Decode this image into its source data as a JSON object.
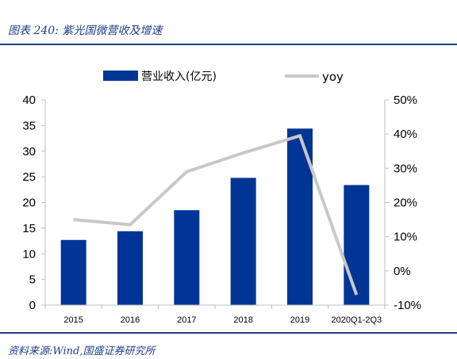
{
  "figure": {
    "title": "图表 240:  紫光国微营收及增速",
    "source": "资料来源:Wind,国盛证券研究所"
  },
  "colors": {
    "bar": "#003595",
    "line": "#c8c8c8",
    "rule": "#1f3d8a"
  },
  "chart_data": {
    "type": "bar",
    "categories": [
      "2015",
      "2016",
      "2017",
      "2018",
      "2019",
      "2020Q1-2Q3"
    ],
    "series": [
      {
        "name": "营业收入(亿元)",
        "type": "bar",
        "axis": "left",
        "values": [
          12.7,
          14.4,
          18.5,
          24.8,
          34.4,
          23.4
        ]
      },
      {
        "name": "yoy",
        "type": "line",
        "axis": "right",
        "values": [
          15.0,
          13.5,
          29.0,
          34.5,
          39.5,
          -7.0
        ]
      }
    ],
    "y_left": {
      "ylim": [
        0,
        40
      ],
      "ticks": [
        "0",
        "5",
        "10",
        "15",
        "20",
        "25",
        "30",
        "35",
        "40"
      ]
    },
    "y_right": {
      "ylim": [
        -10,
        50
      ],
      "ticks": [
        "-10%",
        "0%",
        "10%",
        "20%",
        "30%",
        "40%",
        "50%"
      ]
    },
    "grid": false,
    "legend": "top"
  }
}
